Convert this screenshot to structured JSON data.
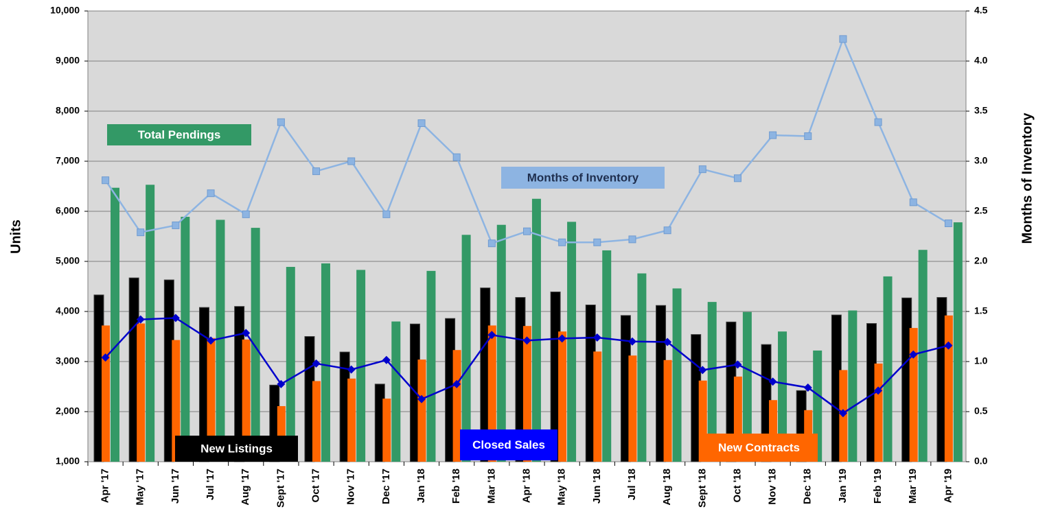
{
  "chart_data": {
    "type": "combo",
    "categories": [
      "Apr '17",
      "May '17",
      "Jun '17",
      "Jul '17",
      "Aug '17",
      "Sept '17",
      "Oct '17",
      "Nov '17",
      "Dec '17",
      "Jan '18",
      "Feb '18",
      "Mar '18",
      "Apr '18",
      "May '18",
      "Jun '18",
      "Jul '18",
      "Aug '18",
      "Sept '18",
      "Oct '18",
      "Nov '18",
      "Dec '18",
      "Jan '19",
      "Feb '19",
      "Mar '19",
      "Apr '19"
    ],
    "y_label": "Units",
    "y2_label": "Months of Inventory",
    "ylim": [
      1000,
      10000
    ],
    "yticks": [
      {
        "value": 1000,
        "label": "1,000"
      },
      {
        "value": 2000,
        "label": "2,000"
      },
      {
        "value": 3000,
        "label": "3,000"
      },
      {
        "value": 4000,
        "label": "4,000"
      },
      {
        "value": 5000,
        "label": "5,000"
      },
      {
        "value": 6000,
        "label": "6,000"
      },
      {
        "value": 7000,
        "label": "7,000"
      },
      {
        "value": 8000,
        "label": "8,000"
      },
      {
        "value": 9000,
        "label": "9,000"
      },
      {
        "value": 10000,
        "label": "10,000"
      }
    ],
    "y2lim": [
      0,
      4.5
    ],
    "y2ticks": [
      {
        "value": 0,
        "label": "0.0"
      },
      0.5,
      {
        "value": 1,
        "label": "1.0"
      },
      1.5,
      {
        "value": 2,
        "label": "2.0"
      },
      2.5,
      {
        "value": 3,
        "label": "3.0"
      },
      3.5,
      {
        "value": 4,
        "label": "4.0"
      },
      4.5
    ],
    "grid": true,
    "series": [
      {
        "name": "New Listings",
        "type": "bar",
        "color": "#000000",
        "values": [
          4330,
          4670,
          4630,
          4080,
          4100,
          2530,
          3500,
          3190,
          2550,
          3750,
          3860,
          4470,
          4280,
          4390,
          4130,
          3920,
          4120,
          3540,
          3790,
          3340,
          2420,
          3930,
          3760,
          4270,
          4280
        ]
      },
      {
        "name": "New Contracts",
        "type": "bar",
        "color": "#ff6600",
        "values": [
          3720,
          3760,
          3430,
          3470,
          3440,
          2110,
          2610,
          2660,
          2260,
          3040,
          3230,
          3720,
          3710,
          3600,
          3200,
          3120,
          3030,
          2620,
          2700,
          2230,
          2030,
          2830,
          2960,
          3670,
          3920
        ]
      },
      {
        "name": "Total Pendings",
        "type": "bar",
        "color": "#339966",
        "values": [
          6470,
          6530,
          5890,
          5830,
          5670,
          4890,
          4960,
          4830,
          3800,
          4810,
          5530,
          5730,
          6250,
          5790,
          5220,
          4760,
          4460,
          4190,
          3990,
          3600,
          3220,
          4020,
          4700,
          5230,
          5780
        ]
      },
      {
        "name": "Closed Sales",
        "type": "line",
        "color": "#0000cc",
        "values": [
          3080,
          3840,
          3870,
          3420,
          3570,
          2550,
          2960,
          2840,
          3030,
          2250,
          2550,
          3530,
          3420,
          3460,
          3480,
          3400,
          3390,
          2830,
          2940,
          2600,
          2480,
          1970,
          2420,
          3140,
          3320
        ]
      },
      {
        "name": "Months of Inventory",
        "type": "line",
        "axis": "y2",
        "color": "#8db4e2",
        "values": [
          2.81,
          2.29,
          2.36,
          2.68,
          2.47,
          3.39,
          2.9,
          3.0,
          2.47,
          3.38,
          3.04,
          2.18,
          2.3,
          2.19,
          2.19,
          2.22,
          2.31,
          2.92,
          2.83,
          3.26,
          3.25,
          4.22,
          3.39,
          2.59,
          2.38
        ]
      }
    ]
  }
}
